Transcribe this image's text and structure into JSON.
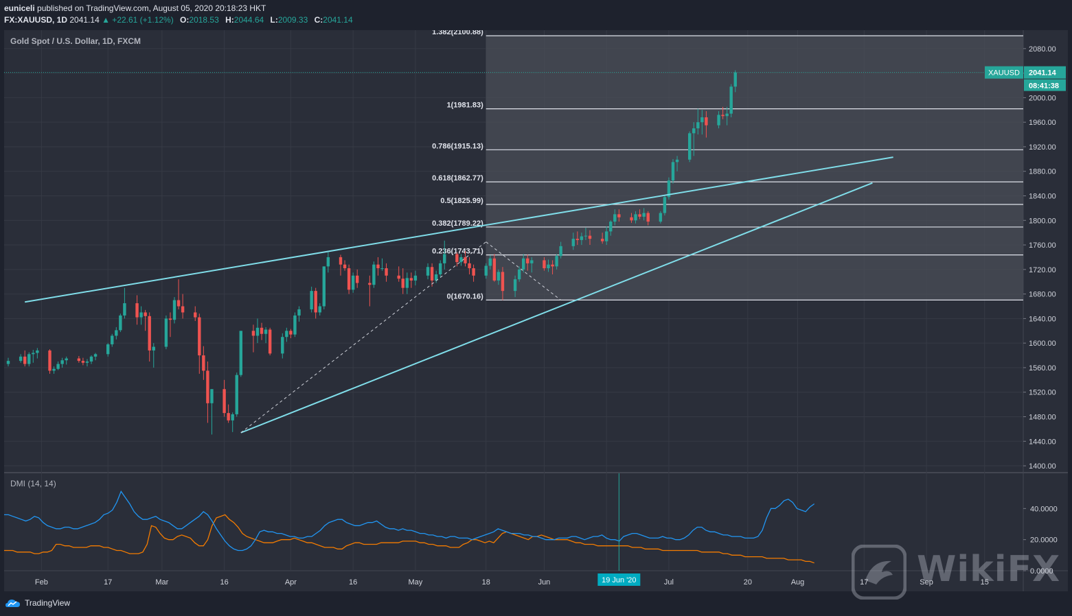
{
  "publisher": {
    "user": "euniceli",
    "text": "published on TradingView.com, August 05, 2020 20:18:23 HKT"
  },
  "quote": {
    "symbol": "FX:XAUUSD, 1D",
    "last": "2041.14",
    "change": "▲ +22.61 (+1.12%)",
    "open_label": "O:",
    "open": "2018.53",
    "high_label": "H:",
    "high": "2044.64",
    "low_label": "L:",
    "low": "2009.33",
    "close_label": "C:",
    "close": "2041.14"
  },
  "footer": {
    "brand": "TradingView"
  },
  "watermark": {
    "text": "WikiFX"
  },
  "colors": {
    "background": "#2a2e39",
    "up": "#26a69a",
    "down": "#ef5350",
    "trendline": "#80deea",
    "fib_zone": "#4a4d57",
    "dmi_plus": "#2196f3",
    "dmi_minus": "#f57c00",
    "price_tag": "#26a69a"
  },
  "chart_data": {
    "type": "candlestick",
    "title": "Gold Spot / U.S. Dollar, 1D, FXCM",
    "price_axis": {
      "ylim": [
        1390,
        2110
      ],
      "ticks": [
        "2080.00",
        "2040.00",
        "2000.00",
        "1960.00",
        "1920.00",
        "1880.00",
        "1840.00",
        "1800.00",
        "1760.00",
        "1720.00",
        "1680.00",
        "1640.00",
        "1600.00",
        "1560.00",
        "1520.00",
        "1480.00",
        "1440.00",
        "1400.00"
      ]
    },
    "time_axis": {
      "labels": [
        "Feb",
        "17",
        "Mar",
        "16",
        "Apr",
        "16",
        "May",
        "18",
        "Jun",
        "Jul",
        "20",
        "Aug",
        "17",
        "Sep",
        "15"
      ],
      "crosshair_label": "19 Jun '20"
    },
    "last_price": {
      "symbol": "XAUUSD",
      "value": "2041.14",
      "countdown": "08:41:38"
    },
    "fibonacci": {
      "start_date": "2020-05-18",
      "levels": [
        {
          "label": "1.382(2100.88)",
          "value": 2100.88
        },
        {
          "label": "1(1981.83)",
          "value": 1981.83
        },
        {
          "label": "0.786(1915.13)",
          "value": 1915.13
        },
        {
          "label": "0.618(1862.77)",
          "value": 1862.77
        },
        {
          "label": "0.5(1825.99)",
          "value": 1825.99
        },
        {
          "label": "0.382(1789.22)",
          "value": 1789.22
        },
        {
          "label": "0.236(1743.71)",
          "value": 1743.71
        },
        {
          "label": "0(1670.16)",
          "value": 1670.16
        }
      ]
    },
    "trendlines": [
      {
        "name": "upper",
        "from": [
          "2020-01-28",
          1667
        ],
        "to": [
          "2020-08-24",
          1903
        ]
      },
      {
        "name": "lower",
        "from": [
          "2020-03-20",
          1454
        ],
        "to": [
          "2020-08-19",
          1861
        ]
      }
    ],
    "dashed_lines": [
      {
        "from": [
          "2020-03-20",
          1454
        ],
        "to": [
          "2020-05-18",
          1765
        ]
      },
      {
        "from": [
          "2020-05-18",
          1765
        ],
        "to": [
          "2020-06-05",
          1670
        ]
      }
    ],
    "candles": {
      "start": "2020-01-24",
      "ohlc": [
        [
          1566,
          1576,
          1562,
          1571
        ],
        [
          1571,
          1582,
          1568,
          1578
        ],
        [
          1578,
          1588,
          1562,
          1566
        ],
        [
          1566,
          1585,
          1562,
          1582
        ],
        [
          1582,
          1589,
          1568,
          1584
        ],
        [
          1584,
          1592,
          1575,
          1588
        ],
        [
          1588,
          1590,
          1550,
          1555
        ],
        [
          1555,
          1562,
          1550,
          1558
        ],
        [
          1558,
          1570,
          1556,
          1566
        ],
        [
          1566,
          1576,
          1560,
          1572
        ],
        [
          1572,
          1578,
          1565,
          1575
        ],
        [
          1575,
          1579,
          1568,
          1571
        ],
        [
          1571,
          1576,
          1564,
          1568
        ],
        [
          1568,
          1574,
          1562,
          1570
        ],
        [
          1570,
          1580,
          1566,
          1578
        ],
        [
          1578,
          1584,
          1572,
          1582
        ],
        [
          1582,
          1600,
          1578,
          1598
        ],
        [
          1598,
          1615,
          1594,
          1612
        ],
        [
          1612,
          1626,
          1606,
          1621
        ],
        [
          1621,
          1648,
          1618,
          1645
        ],
        [
          1645,
          1690,
          1640,
          1665
        ],
        [
          1665,
          1678,
          1630,
          1642
        ],
        [
          1642,
          1660,
          1630,
          1650
        ],
        [
          1650,
          1654,
          1620,
          1644
        ],
        [
          1644,
          1650,
          1570,
          1588
        ],
        [
          1588,
          1600,
          1560,
          1594
        ],
        [
          1594,
          1645,
          1590,
          1640
        ],
        [
          1640,
          1650,
          1610,
          1638
        ],
        [
          1638,
          1675,
          1632,
          1670
        ],
        [
          1670,
          1704,
          1655,
          1660
        ],
        [
          1660,
          1680,
          1640,
          1650
        ],
        [
          1650,
          1660,
          1636,
          1642
        ],
        [
          1642,
          1648,
          1550,
          1580
        ],
        [
          1580,
          1595,
          1540,
          1555
        ],
        [
          1555,
          1570,
          1470,
          1502
        ],
        [
          1502,
          1525,
          1451,
          1525
        ],
        [
          1525,
          1540,
          1480,
          1486
        ],
        [
          1486,
          1500,
          1470,
          1474
        ],
        [
          1474,
          1487,
          1455,
          1484
        ],
        [
          1484,
          1552,
          1480,
          1548
        ],
        [
          1548,
          1615,
          1545,
          1620
        ],
        [
          1620,
          1630,
          1585,
          1612
        ],
        [
          1612,
          1640,
          1600,
          1625
        ],
        [
          1625,
          1633,
          1605,
          1615
        ],
        [
          1615,
          1626,
          1600,
          1622
        ],
        [
          1622,
          1625,
          1580,
          1583
        ],
        [
          1583,
          1616,
          1575,
          1610
        ],
        [
          1610,
          1625,
          1602,
          1620
        ],
        [
          1620,
          1623,
          1608,
          1614
        ],
        [
          1614,
          1650,
          1610,
          1645
        ],
        [
          1645,
          1660,
          1635,
          1655
        ],
        [
          1655,
          1692,
          1650,
          1685
        ],
        [
          1685,
          1690,
          1640,
          1650
        ],
        [
          1650,
          1665,
          1645,
          1660
        ],
        [
          1660,
          1725,
          1655,
          1725
        ],
        [
          1725,
          1748,
          1715,
          1740
        ],
        [
          1740,
          1744,
          1710,
          1728
        ],
        [
          1728,
          1735,
          1718,
          1722
        ],
        [
          1722,
          1728,
          1680,
          1687
        ],
        [
          1687,
          1715,
          1682,
          1710
        ],
        [
          1710,
          1720,
          1690,
          1698
        ],
        [
          1698,
          1710,
          1660,
          1695
        ],
        [
          1695,
          1733,
          1690,
          1728
        ],
        [
          1728,
          1740,
          1710,
          1722
        ],
        [
          1722,
          1738,
          1718,
          1722
        ],
        [
          1722,
          1730,
          1700,
          1710
        ],
        [
          1710,
          1725,
          1700,
          1705
        ],
        [
          1705,
          1722,
          1680,
          1690
        ],
        [
          1690,
          1715,
          1680,
          1706
        ],
        [
          1706,
          1715,
          1690,
          1702
        ],
        [
          1702,
          1718,
          1694,
          1710
        ],
        [
          1710,
          1730,
          1704,
          1724
        ],
        [
          1724,
          1730,
          1692,
          1702
        ],
        [
          1702,
          1718,
          1698,
          1712
        ],
        [
          1712,
          1735,
          1708,
          1730
        ],
        [
          1730,
          1767,
          1720,
          1745
        ],
        [
          1745,
          1748,
          1725,
          1732
        ],
        [
          1732,
          1745,
          1726,
          1740
        ],
        [
          1740,
          1750,
          1725,
          1730
        ],
        [
          1730,
          1740,
          1712,
          1722
        ],
        [
          1722,
          1728,
          1700,
          1710
        ],
        [
          1710,
          1730,
          1705,
          1726
        ],
        [
          1726,
          1743,
          1720,
          1738
        ],
        [
          1738,
          1745,
          1700,
          1702
        ],
        [
          1702,
          1720,
          1695,
          1716
        ],
        [
          1716,
          1724,
          1670,
          1685
        ],
        [
          1685,
          1710,
          1675,
          1704
        ],
        [
          1704,
          1725,
          1700,
          1720
        ],
        [
          1720,
          1745,
          1715,
          1738
        ],
        [
          1738,
          1744,
          1718,
          1730
        ],
        [
          1730,
          1740,
          1715,
          1735
        ],
        [
          1735,
          1740,
          1718,
          1722
        ],
        [
          1722,
          1736,
          1716,
          1728
        ],
        [
          1728,
          1735,
          1712,
          1725
        ],
        [
          1725,
          1745,
          1720,
          1742
        ],
        [
          1742,
          1765,
          1738,
          1758
        ],
        [
          1758,
          1780,
          1752,
          1770
        ],
        [
          1770,
          1782,
          1760,
          1768
        ],
        [
          1768,
          1780,
          1760,
          1774
        ],
        [
          1774,
          1788,
          1768,
          1775
        ],
        [
          1775,
          1784,
          1760,
          1770
        ],
        [
          1770,
          1780,
          1762,
          1766
        ],
        [
          1766,
          1790,
          1760,
          1782
        ],
        [
          1782,
          1800,
          1775,
          1798
        ],
        [
          1798,
          1818,
          1792,
          1810
        ],
        [
          1810,
          1818,
          1798,
          1805
        ],
        [
          1805,
          1812,
          1796,
          1800
        ],
        [
          1800,
          1815,
          1795,
          1810
        ],
        [
          1810,
          1818,
          1802,
          1806
        ],
        [
          1806,
          1820,
          1800,
          1812
        ],
        [
          1812,
          1815,
          1792,
          1798
        ],
        [
          1798,
          1815,
          1795,
          1812
        ],
        [
          1812,
          1840,
          1808,
          1838
        ],
        [
          1838,
          1870,
          1834,
          1865
        ],
        [
          1865,
          1900,
          1860,
          1895
        ],
        [
          1895,
          1905,
          1880,
          1899
        ],
        [
          1899,
          1945,
          1895,
          1942
        ],
        [
          1942,
          1960,
          1905,
          1950
        ],
        [
          1950,
          1982,
          1940,
          1960
        ],
        [
          1960,
          1980,
          1940,
          1968
        ],
        [
          1968,
          1978,
          1935,
          1955
        ],
        [
          1955,
          1978,
          1950,
          1972
        ],
        [
          1972,
          1985,
          1965,
          1970
        ],
        [
          1970,
          1985,
          1955,
          1974
        ],
        [
          1974,
          2022,
          1968,
          2018
        ],
        [
          2018,
          2044.64,
          2009,
          2041.14
        ]
      ]
    },
    "dmi": {
      "title": "DMI (14, 14)",
      "ylim": [
        0,
        60
      ],
      "ticks": [
        "40.0000",
        "20.0000",
        "0.0000"
      ],
      "plus_di": [
        36,
        36,
        35,
        34,
        33,
        32,
        33,
        35,
        34,
        31,
        29,
        28,
        27,
        27,
        28,
        28,
        27,
        27,
        28,
        29,
        30,
        31,
        33,
        36,
        37,
        39,
        44,
        51,
        47,
        43,
        38,
        35,
        33,
        33,
        34,
        35,
        33,
        32,
        31,
        29,
        27,
        27,
        29,
        31,
        33,
        35,
        38,
        36,
        32,
        27,
        23,
        19,
        16,
        14,
        13,
        13,
        14,
        16,
        20,
        25,
        26,
        25,
        25,
        24,
        24,
        23,
        22,
        22,
        21,
        21,
        22,
        22,
        24,
        26,
        29,
        31,
        32,
        33,
        33,
        31,
        30,
        29,
        29,
        30,
        31,
        31,
        32,
        30,
        28,
        27,
        27,
        26,
        27,
        26,
        26,
        25,
        24,
        24,
        23,
        23,
        22,
        22,
        21,
        22,
        22,
        21,
        21,
        21,
        20,
        21,
        22,
        23,
        24,
        25,
        27,
        26,
        25,
        24,
        24,
        24,
        23,
        23,
        22,
        22,
        21,
        20,
        20,
        20,
        21,
        21,
        21,
        22,
        22,
        21,
        20,
        21,
        22,
        22,
        23,
        21,
        20,
        20,
        19,
        22,
        23,
        24,
        24,
        23,
        22,
        21,
        21,
        21,
        22,
        21,
        21,
        20,
        20,
        21,
        23,
        26,
        28,
        28,
        26,
        25,
        25,
        24,
        23,
        23,
        22,
        22,
        22,
        21,
        21,
        21,
        22,
        26,
        34,
        40,
        40,
        42,
        45,
        46,
        44,
        40,
        39,
        38,
        41,
        43
      ],
      "minus_di": [
        13,
        13,
        13,
        12,
        12,
        12,
        12,
        11,
        11,
        12,
        12,
        13,
        17,
        17,
        16,
        16,
        15,
        15,
        15,
        15,
        16,
        16,
        16,
        15,
        15,
        14,
        13,
        13,
        12,
        11,
        11,
        11,
        12,
        17,
        29,
        28,
        24,
        21,
        20,
        20,
        22,
        23,
        22,
        21,
        18,
        16,
        16,
        20,
        29,
        34,
        35,
        36,
        33,
        31,
        28,
        24,
        22,
        21,
        20,
        19,
        18,
        18,
        18,
        19,
        20,
        20,
        20,
        21,
        20,
        19,
        18,
        18,
        17,
        16,
        15,
        15,
        15,
        14,
        14,
        16,
        17,
        18,
        18,
        17,
        17,
        17,
        17,
        18,
        18,
        18,
        18,
        18,
        19,
        19,
        19,
        19,
        18,
        18,
        17,
        17,
        16,
        16,
        16,
        15,
        15,
        15,
        17,
        18,
        20,
        20,
        19,
        18,
        19,
        18,
        21,
        24,
        25,
        24,
        23,
        22,
        21,
        20,
        22,
        22,
        23,
        22,
        21,
        20,
        20,
        20,
        20,
        19,
        18,
        18,
        17,
        17,
        17,
        16,
        16,
        16,
        16,
        16,
        16,
        16,
        16,
        15,
        15,
        15,
        14,
        14,
        14,
        14,
        13,
        13,
        13,
        13,
        13,
        13,
        13,
        13,
        13,
        12,
        12,
        12,
        12,
        12,
        11,
        11,
        10,
        10,
        10,
        9,
        9,
        9,
        9,
        9,
        8,
        8,
        8,
        8,
        8,
        7,
        7,
        7,
        7,
        6,
        6,
        5
      ]
    }
  }
}
